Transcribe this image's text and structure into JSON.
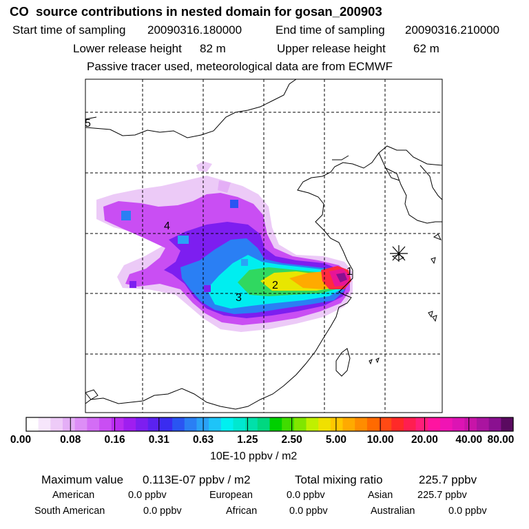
{
  "title": "CO  source contributions in nested domain for gosan_200903",
  "header": {
    "start_label": "Start time of sampling",
    "start_value": "20090316.180000",
    "end_label": "End time of sampling",
    "end_value": "20090316.210000",
    "lower_label": "Lower release height",
    "lower_value": "82 m",
    "upper_label": "Upper release height",
    "upper_value": "62 m",
    "note": "Passive tracer used, meteorological data are from ECMWF"
  },
  "chart_data": {
    "type": "heatmap",
    "title": "CO  source contributions in nested domain for gosan_200903",
    "quantity": "CO source contribution",
    "units": "10E-10 ppbv / m2",
    "color_scale": {
      "tick_labels": [
        "0.00",
        "0.08",
        "0.16",
        "0.31",
        "0.63",
        "1.25",
        "2.50",
        "5.00",
        "10.00",
        "20.00",
        "40.00",
        "80.00"
      ],
      "colors": [
        "#ffffff",
        "#f6e6fb",
        "#eecbf8",
        "#e4aef6",
        "#dd8ef6",
        "#d36df5",
        "#c94ef3",
        "#b92cf0",
        "#9f1ef0",
        "#7d1ef0",
        "#5b22f0",
        "#3a2cf0",
        "#2a55f2",
        "#2a7ff4",
        "#2aa2f6",
        "#1ec4f8",
        "#00f0f0",
        "#00e8d0",
        "#00e0aa",
        "#00d880",
        "#00d000",
        "#40dc00",
        "#80e600",
        "#c0f000",
        "#f0e000",
        "#ffc800",
        "#ffaa00",
        "#ff8c00",
        "#ff6a00",
        "#ff4a14",
        "#ff2a28",
        "#ff1e50",
        "#ff1e7a",
        "#ff14a0",
        "#f014b4",
        "#dc14b4",
        "#c814a8",
        "#aa14a0",
        "#8a1090",
        "#5a0a60"
      ]
    },
    "grid": true,
    "labeled_points": [
      "1",
      "2",
      "3",
      "4",
      "5"
    ],
    "receptor_marker": "gosan",
    "maximum_value": "0.113E-07",
    "total_mixing_ratio": "225.7"
  },
  "map": {
    "labels": [
      "1",
      "2",
      "3",
      "4",
      "5"
    ]
  },
  "colorbar": {
    "ticks": [
      "0.00",
      "0.08",
      "0.16",
      "0.31",
      "0.63",
      "1.25",
      "2.50",
      "5.00",
      "10.00",
      "20.00",
      "40.00",
      "80.00"
    ],
    "units": "10E-10 ppbv / m2"
  },
  "stats": {
    "max_label": "Maximum value",
    "max_value": "0.113E-07 ppbv / m2",
    "total_label": "Total mixing ratio",
    "total_value": "225.7 ppbv",
    "regions": [
      {
        "name": "American",
        "value": "0.0 ppbv"
      },
      {
        "name": "European",
        "value": "0.0 ppbv"
      },
      {
        "name": "Asian",
        "value": "225.7 ppbv"
      },
      {
        "name": "South American",
        "value": "0.0 ppbv"
      },
      {
        "name": "African",
        "value": "0.0 ppbv"
      },
      {
        "name": "Australian",
        "value": "0.0 ppbv"
      }
    ]
  }
}
